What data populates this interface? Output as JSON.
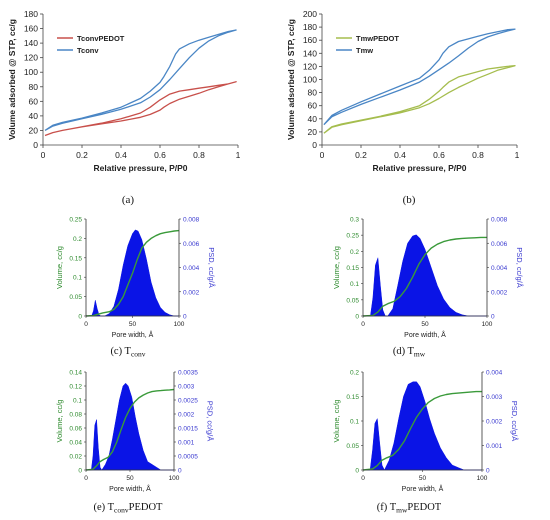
{
  "chart_data": [
    {
      "id": "a",
      "type": "line",
      "caption": "(a)",
      "xlabel": "Relative pressure, P/P0",
      "ylabel": "Volume adsorbed @ STP, cc/g",
      "xlim": [
        0,
        1
      ],
      "ylim": [
        0,
        180
      ],
      "xticks": [
        0,
        0.2,
        0.4,
        0.6,
        0.8,
        1
      ],
      "yticks": [
        0,
        20,
        40,
        60,
        80,
        100,
        120,
        140,
        160,
        180
      ],
      "grid": false,
      "legend": "top-left",
      "series": [
        {
          "name": "TconvPEDOT",
          "color": "#c8504b",
          "x": [
            0.01,
            0.05,
            0.1,
            0.2,
            0.3,
            0.4,
            0.5,
            0.55,
            0.6,
            0.62,
            0.65,
            0.7,
            0.75,
            0.8,
            0.85,
            0.9,
            0.95,
            0.99,
            0.95,
            0.9,
            0.85,
            0.8,
            0.75,
            0.7,
            0.65,
            0.6,
            0.55,
            0.5,
            0.4,
            0.3,
            0.2,
            0.1,
            0.05,
            0.01
          ],
          "y": [
            13,
            17,
            20,
            25,
            29,
            33,
            38,
            42,
            48,
            52,
            57,
            63,
            67,
            71,
            76,
            80,
            84,
            87,
            84,
            82,
            80,
            78,
            76,
            74,
            70,
            62,
            52,
            44,
            36,
            30,
            25,
            20,
            17,
            13
          ]
        },
        {
          "name": "Tconv",
          "color": "#4a86c5",
          "x": [
            0.01,
            0.05,
            0.1,
            0.2,
            0.3,
            0.4,
            0.5,
            0.55,
            0.6,
            0.65,
            0.7,
            0.75,
            0.8,
            0.85,
            0.9,
            0.95,
            0.99,
            0.95,
            0.9,
            0.85,
            0.8,
            0.75,
            0.7,
            0.68,
            0.65,
            0.62,
            0.6,
            0.55,
            0.5,
            0.4,
            0.3,
            0.2,
            0.1,
            0.05,
            0.01
          ],
          "y": [
            20,
            26,
            30,
            36,
            42,
            49,
            58,
            66,
            76,
            90,
            105,
            120,
            133,
            143,
            150,
            155,
            158,
            156,
            152,
            148,
            144,
            139,
            132,
            125,
            108,
            94,
            86,
            74,
            64,
            52,
            44,
            37,
            31,
            27,
            20
          ]
        }
      ]
    },
    {
      "id": "b",
      "type": "line",
      "caption": "(b)",
      "xlabel": "Relative pressure, P/P0",
      "ylabel": "Volume adsorbed @ STP, cc/g",
      "xlim": [
        0,
        1
      ],
      "ylim": [
        0,
        200
      ],
      "xticks": [
        0,
        0.2,
        0.4,
        0.6,
        0.8,
        1
      ],
      "yticks": [
        0,
        20,
        40,
        60,
        80,
        100,
        120,
        140,
        160,
        180,
        200
      ],
      "grid": false,
      "legend": "top-left",
      "series": [
        {
          "name": "TmwPEDOT",
          "color": "#a5bd4e",
          "x": [
            0.01,
            0.05,
            0.1,
            0.2,
            0.3,
            0.4,
            0.5,
            0.55,
            0.6,
            0.65,
            0.7,
            0.75,
            0.8,
            0.85,
            0.9,
            0.95,
            0.99,
            0.95,
            0.9,
            0.85,
            0.8,
            0.75,
            0.7,
            0.65,
            0.62,
            0.6,
            0.55,
            0.5,
            0.4,
            0.3,
            0.2,
            0.1,
            0.05,
            0.01
          ],
          "y": [
            18,
            27,
            31,
            37,
            43,
            49,
            57,
            63,
            71,
            80,
            88,
            95,
            102,
            108,
            114,
            118,
            121,
            120,
            118,
            116,
            112,
            108,
            104,
            96,
            88,
            82,
            70,
            60,
            51,
            44,
            38,
            32,
            28,
            18
          ]
        },
        {
          "name": "Tmw",
          "color": "#4a86c5",
          "x": [
            0.01,
            0.05,
            0.1,
            0.2,
            0.3,
            0.4,
            0.5,
            0.55,
            0.6,
            0.65,
            0.7,
            0.75,
            0.8,
            0.85,
            0.9,
            0.95,
            0.99,
            0.95,
            0.9,
            0.85,
            0.8,
            0.75,
            0.7,
            0.65,
            0.62,
            0.6,
            0.55,
            0.5,
            0.4,
            0.3,
            0.2,
            0.1,
            0.05,
            0.01
          ],
          "y": [
            31,
            43,
            50,
            62,
            73,
            84,
            96,
            105,
            115,
            125,
            136,
            148,
            158,
            165,
            170,
            174,
            177,
            176,
            173,
            170,
            166,
            162,
            158,
            150,
            140,
            130,
            114,
            102,
            90,
            78,
            66,
            53,
            45,
            31
          ]
        }
      ]
    },
    {
      "id": "c",
      "type": "area",
      "caption_prefix": "(c) T",
      "caption_sub": "conv",
      "caption_suffix": "",
      "xlabel": "Pore width, Å",
      "ylabel_left": "Volume, cc/g",
      "ylabel_right": "PSD, cc/g/Å",
      "xlim": [
        0,
        100
      ],
      "xticks": [
        0,
        50,
        100
      ],
      "ylim_left": [
        0,
        0.25
      ],
      "yticks_left": [
        "0",
        "0.05",
        "0.1",
        "0.15",
        "0.2",
        "0.25"
      ],
      "ylim_right": [
        0,
        0.008
      ],
      "yticks_right": [
        "0",
        "0.002",
        "0.004",
        "0.006",
        "0.008"
      ],
      "cumulative": {
        "x": [
          0,
          8,
          12,
          18,
          25,
          30,
          35,
          40,
          45,
          50,
          55,
          60,
          65,
          70,
          75,
          80,
          85,
          90,
          95,
          100
        ],
        "y": [
          0,
          0.001,
          0.004,
          0.008,
          0.011,
          0.017,
          0.03,
          0.05,
          0.08,
          0.11,
          0.145,
          0.175,
          0.19,
          0.2,
          0.207,
          0.212,
          0.215,
          0.217,
          0.219,
          0.22
        ]
      },
      "psd": {
        "x": [
          0,
          6,
          8,
          10,
          12,
          14,
          16,
          20,
          25,
          30,
          35,
          40,
          45,
          50,
          53,
          56,
          60,
          65,
          70,
          75,
          80,
          85,
          90,
          95,
          100
        ],
        "y": [
          0,
          0,
          0.0004,
          0.0013,
          0.0006,
          0.0001,
          0,
          0,
          0.0002,
          0.0008,
          0.0022,
          0.0042,
          0.0058,
          0.0068,
          0.0071,
          0.007,
          0.0063,
          0.0047,
          0.0028,
          0.0015,
          0.0007,
          0.0003,
          0.0001,
          0,
          0
        ]
      },
      "colors": {
        "cumulative": "#3a9a3a",
        "psd": "#0a14e6",
        "left_axis": "#2e8b2e",
        "right_axis": "#3a3ad0"
      }
    },
    {
      "id": "d",
      "type": "area",
      "caption_prefix": "(d) T",
      "caption_sub": "mw",
      "caption_suffix": "",
      "xlabel": "Pore width, Å",
      "ylabel_left": "Volume, cc/g",
      "ylabel_right": "PSD, cc/g/Å",
      "xlim": [
        0,
        100
      ],
      "xticks": [
        0,
        50,
        100
      ],
      "ylim_left": [
        0,
        0.3
      ],
      "yticks_left": [
        "0",
        "0.05",
        "0.1",
        "0.15",
        "0.2",
        "0.25",
        "0.3"
      ],
      "ylim_right": [
        0,
        0.008
      ],
      "yticks_right": [
        "0",
        "0.002",
        "0.004",
        "0.006",
        "0.008"
      ],
      "cumulative": {
        "x": [
          0,
          8,
          12,
          16,
          20,
          25,
          30,
          35,
          40,
          45,
          50,
          55,
          60,
          65,
          70,
          75,
          80,
          85,
          90,
          95,
          100
        ],
        "y": [
          0,
          0.002,
          0.012,
          0.03,
          0.038,
          0.045,
          0.06,
          0.085,
          0.12,
          0.16,
          0.19,
          0.21,
          0.222,
          0.23,
          0.235,
          0.238,
          0.24,
          0.241,
          0.242,
          0.243,
          0.243
        ]
      },
      "psd": {
        "x": [
          0,
          6,
          8,
          10,
          12,
          14,
          16,
          18,
          20,
          24,
          28,
          32,
          36,
          40,
          43,
          46,
          50,
          55,
          60,
          65,
          70,
          75,
          80,
          85,
          90,
          100
        ],
        "y": [
          0,
          0,
          0.0015,
          0.0042,
          0.0048,
          0.0025,
          0.0005,
          0,
          0,
          0.0006,
          0.0025,
          0.0045,
          0.006,
          0.0066,
          0.0067,
          0.0064,
          0.0055,
          0.004,
          0.0025,
          0.0014,
          0.0007,
          0.0003,
          0.0001,
          0,
          0,
          0
        ]
      },
      "colors": {
        "cumulative": "#3a9a3a",
        "psd": "#0a14e6",
        "left_axis": "#2e8b2e",
        "right_axis": "#3a3ad0"
      }
    },
    {
      "id": "e",
      "type": "area",
      "caption_prefix": "(e) T",
      "caption_sub": "conv",
      "caption_suffix": "PEDOT",
      "xlabel": "Pore width, Å",
      "ylabel_left": "Volume, cc/g",
      "ylabel_right": "PSD, cc/g/Å",
      "xlim": [
        0,
        100
      ],
      "xticks": [
        0,
        50,
        100
      ],
      "ylim_left": [
        0,
        0.14
      ],
      "yticks_left": [
        "0",
        "0.02",
        "0.04",
        "0.06",
        "0.08",
        "0.1",
        "0.12",
        "0.14"
      ],
      "ylim_right": [
        0,
        0.0035
      ],
      "yticks_right": [
        "0",
        "0.0005",
        "0.001",
        "0.0015",
        "0.002",
        "0.0025",
        "0.003",
        "0.0035"
      ],
      "cumulative": {
        "x": [
          0,
          8,
          12,
          16,
          20,
          25,
          30,
          35,
          40,
          45,
          50,
          55,
          60,
          65,
          70,
          75,
          80,
          85,
          90,
          95,
          100
        ],
        "y": [
          0,
          0.001,
          0.006,
          0.012,
          0.015,
          0.018,
          0.026,
          0.04,
          0.058,
          0.075,
          0.088,
          0.097,
          0.103,
          0.107,
          0.11,
          0.112,
          0.113,
          0.1135,
          0.114,
          0.1145,
          0.115
        ]
      },
      "psd": {
        "x": [
          0,
          6,
          8,
          10,
          12,
          14,
          16,
          18,
          22,
          26,
          30,
          34,
          38,
          42,
          45,
          48,
          52,
          56,
          60,
          65,
          70,
          75,
          80,
          85,
          90,
          100
        ],
        "y": [
          0,
          0,
          0.0005,
          0.0016,
          0.0018,
          0.0008,
          0.0001,
          0,
          0.0002,
          0.0005,
          0.0011,
          0.0018,
          0.0025,
          0.003,
          0.0031,
          0.003,
          0.0026,
          0.0019,
          0.0013,
          0.0007,
          0.0003,
          0.0002,
          0.0001,
          0,
          0,
          0
        ]
      },
      "colors": {
        "cumulative": "#3a9a3a",
        "psd": "#0a14e6",
        "left_axis": "#2e8b2e",
        "right_axis": "#3a3ad0"
      }
    },
    {
      "id": "f",
      "type": "area",
      "caption_prefix": "(f) T",
      "caption_sub": "mw",
      "caption_suffix": "PEDOT",
      "xlabel": "Pore width, Å",
      "ylabel_left": "Volume, cc/g",
      "ylabel_right": "PSD, cc/g/Å",
      "xlim": [
        0,
        100
      ],
      "xticks": [
        0,
        50,
        100
      ],
      "ylim_left": [
        0,
        0.2
      ],
      "yticks_left": [
        "0",
        "0.05",
        "0.1",
        "0.15",
        "0.2"
      ],
      "ylim_right": [
        0,
        0.004
      ],
      "yticks_right": [
        "0",
        "0.001",
        "0.002",
        "0.003",
        "0.004"
      ],
      "cumulative": {
        "x": [
          0,
          8,
          12,
          16,
          20,
          25,
          30,
          35,
          40,
          45,
          50,
          55,
          60,
          65,
          70,
          75,
          80,
          85,
          90,
          95,
          100
        ],
        "y": [
          0,
          0.002,
          0.009,
          0.02,
          0.025,
          0.03,
          0.042,
          0.06,
          0.085,
          0.108,
          0.125,
          0.138,
          0.146,
          0.151,
          0.154,
          0.156,
          0.157,
          0.158,
          0.159,
          0.16,
          0.16
        ]
      },
      "psd": {
        "x": [
          0,
          6,
          8,
          10,
          12,
          14,
          16,
          18,
          22,
          26,
          30,
          34,
          38,
          42,
          45,
          48,
          52,
          56,
          60,
          65,
          70,
          75,
          80,
          85,
          90,
          100
        ],
        "y": [
          0,
          0,
          0.0008,
          0.0019,
          0.0021,
          0.0011,
          0.0002,
          0,
          0.0004,
          0.0011,
          0.0021,
          0.003,
          0.0035,
          0.0036,
          0.0036,
          0.0034,
          0.0028,
          0.0021,
          0.0015,
          0.0009,
          0.0005,
          0.0002,
          0.0001,
          0,
          0,
          0
        ]
      },
      "colors": {
        "cumulative": "#3a9a3a",
        "psd": "#0a14e6",
        "left_axis": "#2e8b2e",
        "right_axis": "#3a3ad0"
      }
    }
  ]
}
